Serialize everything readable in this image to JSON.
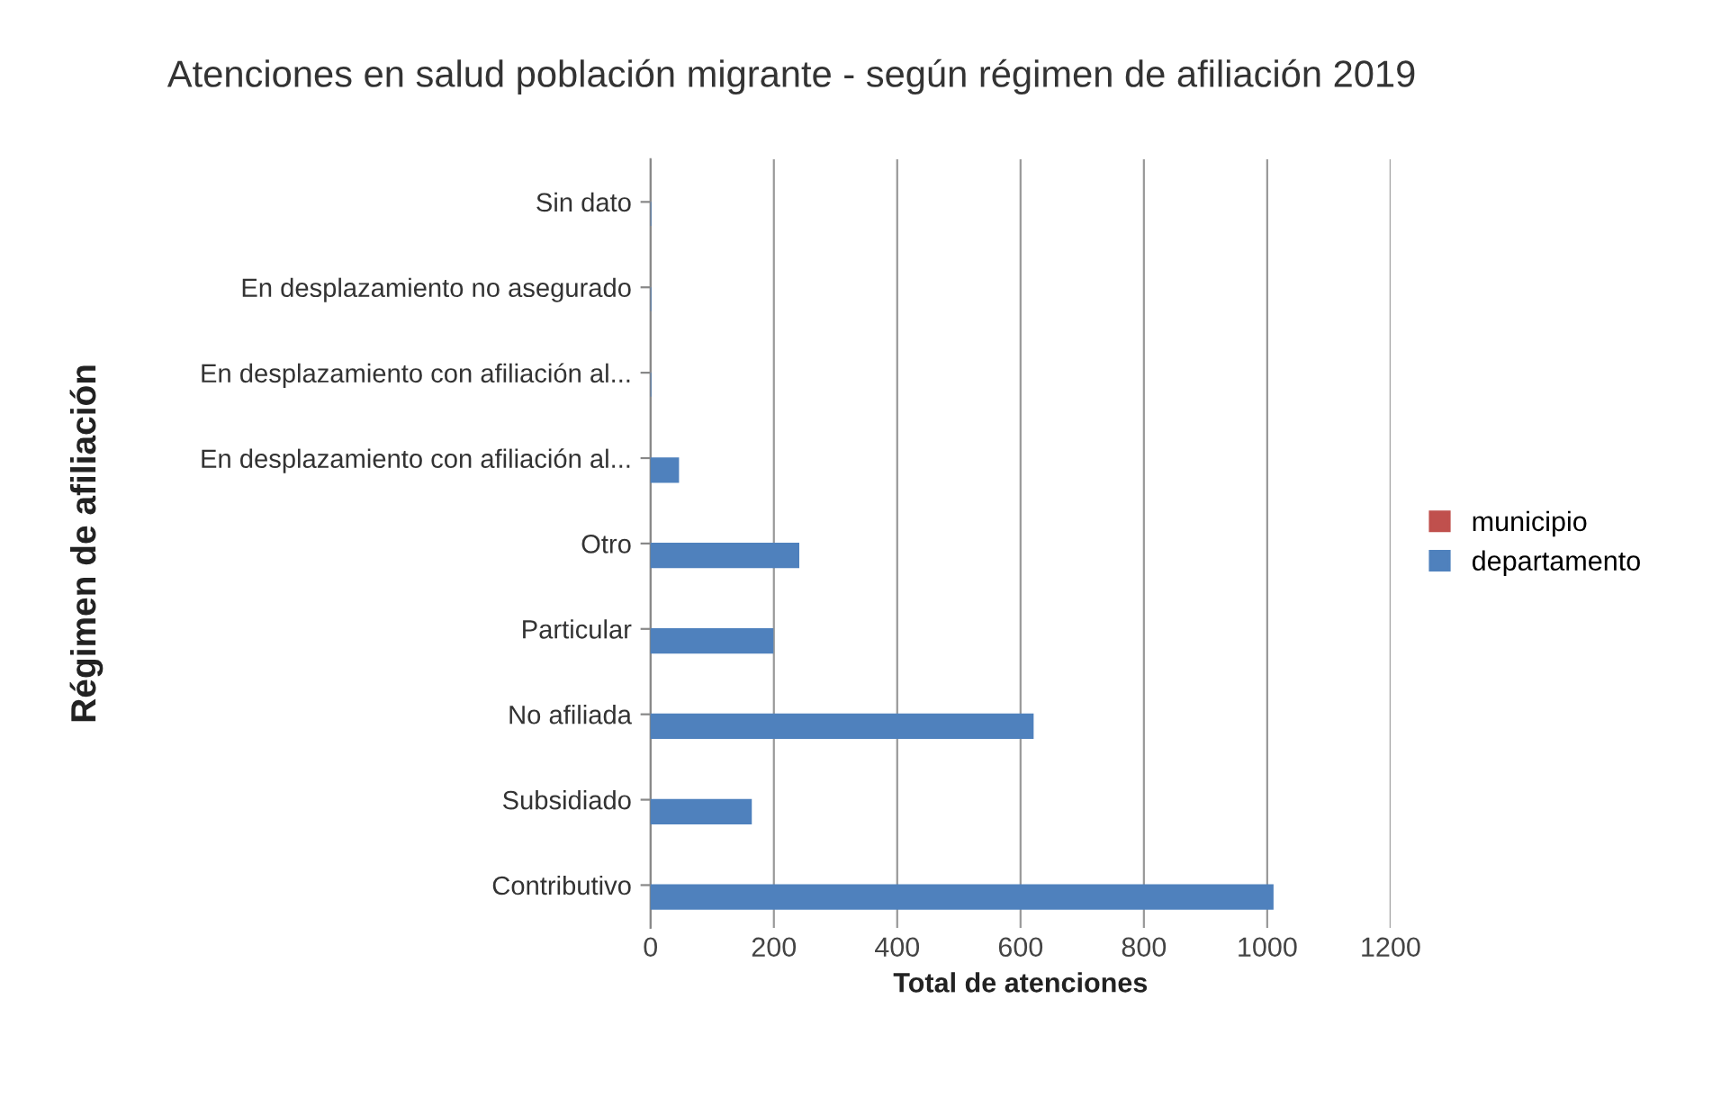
{
  "chart_data": {
    "type": "bar",
    "orientation": "horizontal",
    "title": "Atenciones en salud población migrante - según régimen de afiliación 2019",
    "xlabel": "Total de atenciones",
    "ylabel": "Régimen de afiliación",
    "categories": [
      "Sin dato",
      "En desplazamiento no asegurado",
      "En desplazamiento con afiliación al...",
      "En desplazamiento con afiliación al...",
      "Otro",
      "Particular",
      "No afiliada",
      "Subsidiado",
      "Contributivo"
    ],
    "series": [
      {
        "name": "municipio",
        "color": "#c0504d",
        "values": [
          null,
          null,
          null,
          null,
          null,
          null,
          null,
          null,
          null
        ]
      },
      {
        "name": "departamento",
        "color": "#4f81bd",
        "values": [
          0,
          0,
          0,
          45,
          240,
          198,
          620,
          163,
          1009
        ]
      }
    ],
    "xlim": [
      0,
      1200
    ],
    "xticks": [
      0,
      200,
      400,
      600,
      800,
      1000,
      1200
    ],
    "grid": "x",
    "legend": "right"
  }
}
